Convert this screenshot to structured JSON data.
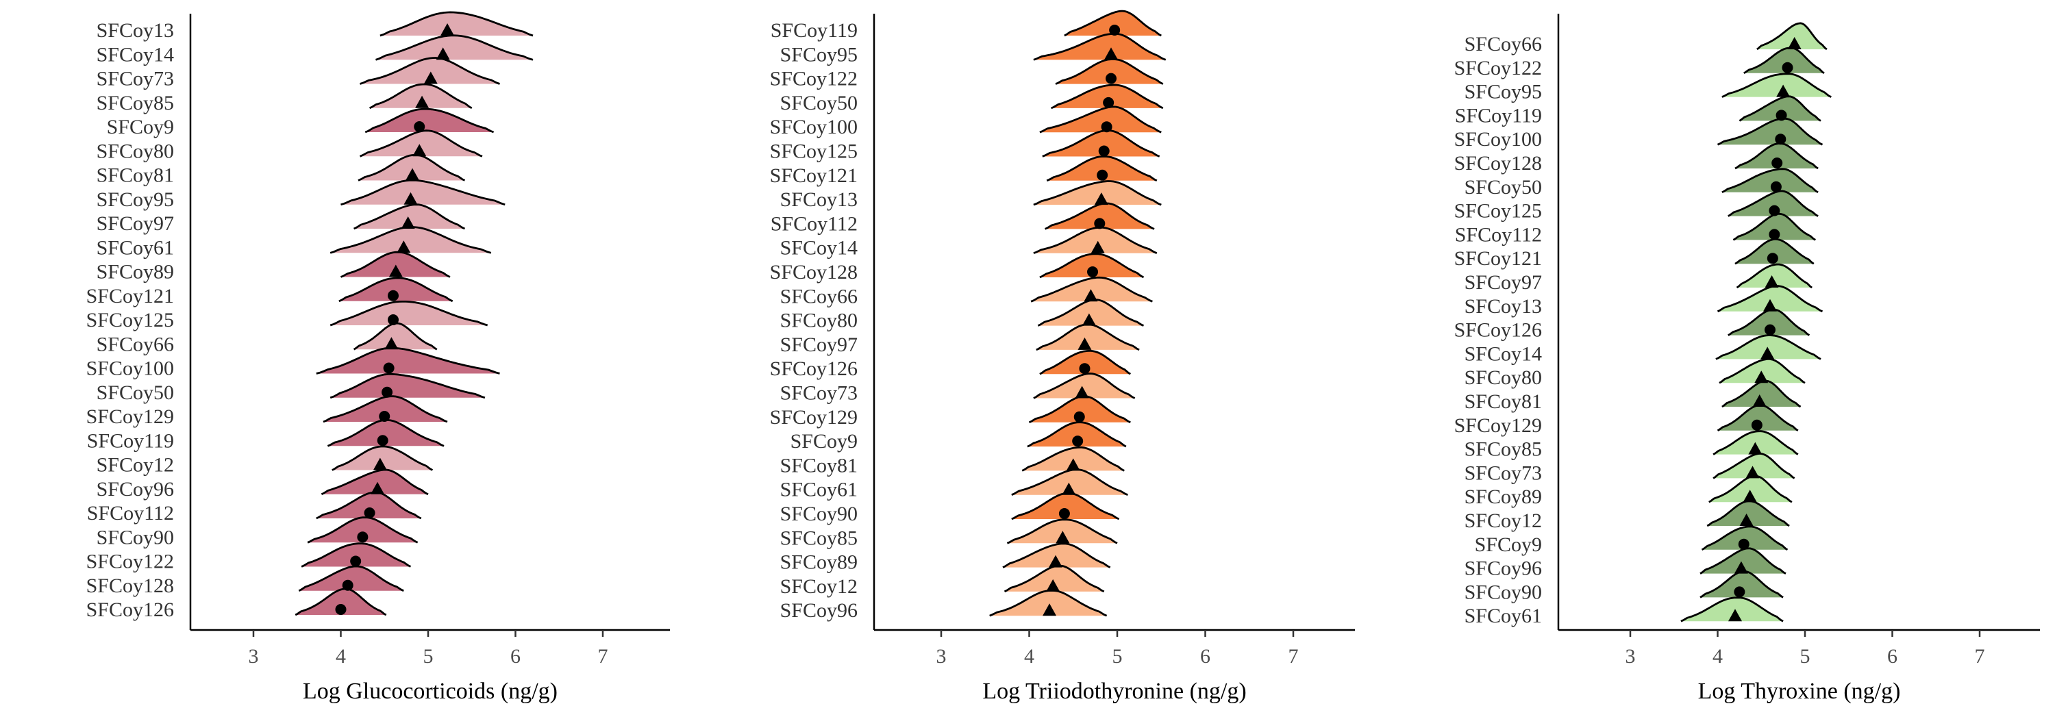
{
  "chart_data": [
    {
      "type": "ridgeline",
      "xlabel": "Log Glucocorticoids (ng/g)",
      "xticks": [
        3,
        4,
        5,
        6,
        7
      ],
      "xlim": [
        2.3,
        7.7
      ],
      "colors": {
        "dark": "#c46b80",
        "light": "#e0aab1"
      },
      "categories": [
        {
          "name": "SFCoy13",
          "marker": "triangle",
          "center": 5.22,
          "shade": "light",
          "min": 4.45,
          "max": 6.2
        },
        {
          "name": "SFCoy14",
          "marker": "triangle",
          "center": 5.17,
          "shade": "light",
          "min": 4.4,
          "max": 6.2
        },
        {
          "name": "SFCoy73",
          "marker": "triangle",
          "center": 5.03,
          "shade": "light",
          "min": 4.22,
          "max": 5.82
        },
        {
          "name": "SFCoy85",
          "marker": "triangle",
          "center": 4.93,
          "shade": "light",
          "min": 4.33,
          "max": 5.5
        },
        {
          "name": "SFCoy9",
          "marker": "circle",
          "center": 4.9,
          "shade": "dark",
          "min": 4.28,
          "max": 5.75
        },
        {
          "name": "SFCoy80",
          "marker": "triangle",
          "center": 4.9,
          "shade": "light",
          "min": 4.22,
          "max": 5.62
        },
        {
          "name": "SFCoy81",
          "marker": "triangle",
          "center": 4.82,
          "shade": "light",
          "min": 4.2,
          "max": 5.42
        },
        {
          "name": "SFCoy95",
          "marker": "triangle",
          "center": 4.8,
          "shade": "light",
          "min": 4.0,
          "max": 5.88
        },
        {
          "name": "SFCoy97",
          "marker": "triangle",
          "center": 4.77,
          "shade": "light",
          "min": 4.15,
          "max": 5.42
        },
        {
          "name": "SFCoy61",
          "marker": "triangle",
          "center": 4.72,
          "shade": "light",
          "min": 3.88,
          "max": 5.72
        },
        {
          "name": "SFCoy89",
          "marker": "triangle",
          "center": 4.63,
          "shade": "dark",
          "min": 4.0,
          "max": 5.25
        },
        {
          "name": "SFCoy121",
          "marker": "circle",
          "center": 4.6,
          "shade": "dark",
          "min": 3.98,
          "max": 5.28
        },
        {
          "name": "SFCoy125",
          "marker": "circle",
          "center": 4.6,
          "shade": "light",
          "min": 3.88,
          "max": 5.68
        },
        {
          "name": "SFCoy66",
          "marker": "triangle",
          "center": 4.58,
          "shade": "light",
          "min": 4.15,
          "max": 5.1
        },
        {
          "name": "SFCoy100",
          "marker": "circle",
          "center": 4.55,
          "shade": "dark",
          "min": 3.72,
          "max": 5.82
        },
        {
          "name": "SFCoy50",
          "marker": "circle",
          "center": 4.53,
          "shade": "dark",
          "min": 3.88,
          "max": 5.65
        },
        {
          "name": "SFCoy129",
          "marker": "circle",
          "center": 4.5,
          "shade": "dark",
          "min": 3.8,
          "max": 5.22
        },
        {
          "name": "SFCoy119",
          "marker": "circle",
          "center": 4.48,
          "shade": "dark",
          "min": 3.85,
          "max": 5.18
        },
        {
          "name": "SFCoy12",
          "marker": "triangle",
          "center": 4.45,
          "shade": "light",
          "min": 3.9,
          "max": 5.05
        },
        {
          "name": "SFCoy96",
          "marker": "triangle",
          "center": 4.42,
          "shade": "dark",
          "min": 3.78,
          "max": 5.0
        },
        {
          "name": "SFCoy112",
          "marker": "circle",
          "center": 4.33,
          "shade": "dark",
          "min": 3.72,
          "max": 4.92
        },
        {
          "name": "SFCoy90",
          "marker": "circle",
          "center": 4.25,
          "shade": "dark",
          "min": 3.62,
          "max": 4.88
        },
        {
          "name": "SFCoy122",
          "marker": "circle",
          "center": 4.17,
          "shade": "dark",
          "min": 3.55,
          "max": 4.8
        },
        {
          "name": "SFCoy128",
          "marker": "circle",
          "center": 4.08,
          "shade": "dark",
          "min": 3.52,
          "max": 4.72
        },
        {
          "name": "SFCoy126",
          "marker": "circle",
          "center": 4.0,
          "shade": "dark",
          "min": 3.48,
          "max": 4.52
        }
      ]
    },
    {
      "type": "ridgeline",
      "xlabel": "Log Triiodothyronine (ng/g)",
      "xticks": [
        3,
        4,
        5,
        6,
        7
      ],
      "xlim": [
        2.3,
        7.7
      ],
      "colors": {
        "dark": "#f47f3e",
        "light": "#f9b488"
      },
      "categories": [
        {
          "name": "SFCoy119",
          "marker": "circle",
          "center": 4.97,
          "shade": "dark",
          "min": 4.4,
          "max": 5.5
        },
        {
          "name": "SFCoy95",
          "marker": "triangle",
          "center": 4.93,
          "shade": "dark",
          "min": 4.05,
          "max": 5.55
        },
        {
          "name": "SFCoy122",
          "marker": "circle",
          "center": 4.93,
          "shade": "dark",
          "min": 4.3,
          "max": 5.52
        },
        {
          "name": "SFCoy50",
          "marker": "circle",
          "center": 4.9,
          "shade": "dark",
          "min": 4.25,
          "max": 5.52
        },
        {
          "name": "SFCoy100",
          "marker": "circle",
          "center": 4.88,
          "shade": "dark",
          "min": 4.12,
          "max": 5.5
        },
        {
          "name": "SFCoy125",
          "marker": "circle",
          "center": 4.85,
          "shade": "dark",
          "min": 4.15,
          "max": 5.48
        },
        {
          "name": "SFCoy121",
          "marker": "circle",
          "center": 4.83,
          "shade": "dark",
          "min": 4.2,
          "max": 5.45
        },
        {
          "name": "SFCoy13",
          "marker": "triangle",
          "center": 4.82,
          "shade": "light",
          "min": 4.05,
          "max": 5.5
        },
        {
          "name": "SFCoy112",
          "marker": "circle",
          "center": 4.8,
          "shade": "dark",
          "min": 4.18,
          "max": 5.42
        },
        {
          "name": "SFCoy14",
          "marker": "triangle",
          "center": 4.78,
          "shade": "light",
          "min": 4.05,
          "max": 5.45
        },
        {
          "name": "SFCoy128",
          "marker": "circle",
          "center": 4.72,
          "shade": "dark",
          "min": 4.12,
          "max": 5.3
        },
        {
          "name": "SFCoy66",
          "marker": "triangle",
          "center": 4.7,
          "shade": "light",
          "min": 4.02,
          "max": 5.4
        },
        {
          "name": "SFCoy80",
          "marker": "triangle",
          "center": 4.68,
          "shade": "light",
          "min": 4.1,
          "max": 5.3
        },
        {
          "name": "SFCoy97",
          "marker": "triangle",
          "center": 4.63,
          "shade": "light",
          "min": 4.08,
          "max": 5.25
        },
        {
          "name": "SFCoy126",
          "marker": "circle",
          "center": 4.63,
          "shade": "dark",
          "min": 4.12,
          "max": 5.15
        },
        {
          "name": "SFCoy73",
          "marker": "triangle",
          "center": 4.6,
          "shade": "light",
          "min": 4.05,
          "max": 5.2
        },
        {
          "name": "SFCoy129",
          "marker": "circle",
          "center": 4.57,
          "shade": "dark",
          "min": 4.0,
          "max": 5.15
        },
        {
          "name": "SFCoy9",
          "marker": "circle",
          "center": 4.55,
          "shade": "dark",
          "min": 3.98,
          "max": 5.1
        },
        {
          "name": "SFCoy81",
          "marker": "triangle",
          "center": 4.5,
          "shade": "light",
          "min": 3.92,
          "max": 5.08
        },
        {
          "name": "SFCoy61",
          "marker": "triangle",
          "center": 4.45,
          "shade": "light",
          "min": 3.8,
          "max": 5.12
        },
        {
          "name": "SFCoy90",
          "marker": "circle",
          "center": 4.4,
          "shade": "dark",
          "min": 3.8,
          "max": 5.02
        },
        {
          "name": "SFCoy85",
          "marker": "triangle",
          "center": 4.38,
          "shade": "light",
          "min": 3.75,
          "max": 5.0
        },
        {
          "name": "SFCoy89",
          "marker": "triangle",
          "center": 4.3,
          "shade": "light",
          "min": 3.7,
          "max": 4.92
        },
        {
          "name": "SFCoy12",
          "marker": "triangle",
          "center": 4.27,
          "shade": "light",
          "min": 3.72,
          "max": 4.85
        },
        {
          "name": "SFCoy96",
          "marker": "triangle",
          "center": 4.23,
          "shade": "light",
          "min": 3.55,
          "max": 4.88
        }
      ]
    },
    {
      "type": "ridgeline",
      "xlabel": "Log Thyroxine (ng/g)",
      "xticks": [
        3,
        4,
        5,
        6,
        7
      ],
      "xlim": [
        2.3,
        7.7
      ],
      "colors": {
        "dark": "#7fa36e",
        "light": "#b6e3a2"
      },
      "categories": [
        {
          "name": "SFCoy66",
          "marker": "triangle",
          "center": 4.88,
          "shade": "light",
          "min": 4.45,
          "max": 5.25
        },
        {
          "name": "SFCoy122",
          "marker": "circle",
          "center": 4.8,
          "shade": "dark",
          "min": 4.3,
          "max": 5.22
        },
        {
          "name": "SFCoy95",
          "marker": "triangle",
          "center": 4.75,
          "shade": "light",
          "min": 4.05,
          "max": 5.3
        },
        {
          "name": "SFCoy119",
          "marker": "circle",
          "center": 4.73,
          "shade": "dark",
          "min": 4.25,
          "max": 5.18
        },
        {
          "name": "SFCoy100",
          "marker": "circle",
          "center": 4.72,
          "shade": "dark",
          "min": 4.0,
          "max": 5.2
        },
        {
          "name": "SFCoy128",
          "marker": "circle",
          "center": 4.68,
          "shade": "dark",
          "min": 4.2,
          "max": 5.15
        },
        {
          "name": "SFCoy50",
          "marker": "circle",
          "center": 4.67,
          "shade": "dark",
          "min": 4.05,
          "max": 5.15
        },
        {
          "name": "SFCoy125",
          "marker": "circle",
          "center": 4.65,
          "shade": "dark",
          "min": 4.12,
          "max": 5.15
        },
        {
          "name": "SFCoy112",
          "marker": "circle",
          "center": 4.65,
          "shade": "dark",
          "min": 4.18,
          "max": 5.12
        },
        {
          "name": "SFCoy121",
          "marker": "circle",
          "center": 4.63,
          "shade": "dark",
          "min": 4.2,
          "max": 5.1
        },
        {
          "name": "SFCoy97",
          "marker": "triangle",
          "center": 4.62,
          "shade": "light",
          "min": 4.22,
          "max": 5.08
        },
        {
          "name": "SFCoy13",
          "marker": "triangle",
          "center": 4.6,
          "shade": "light",
          "min": 4.0,
          "max": 5.2
        },
        {
          "name": "SFCoy126",
          "marker": "circle",
          "center": 4.6,
          "shade": "dark",
          "min": 4.12,
          "max": 5.05
        },
        {
          "name": "SFCoy14",
          "marker": "triangle",
          "center": 4.57,
          "shade": "light",
          "min": 3.98,
          "max": 5.18
        },
        {
          "name": "SFCoy80",
          "marker": "triangle",
          "center": 4.5,
          "shade": "light",
          "min": 4.02,
          "max": 5.0
        },
        {
          "name": "SFCoy81",
          "marker": "triangle",
          "center": 4.48,
          "shade": "dark",
          "min": 4.05,
          "max": 4.95
        },
        {
          "name": "SFCoy129",
          "marker": "circle",
          "center": 4.45,
          "shade": "dark",
          "min": 4.0,
          "max": 4.92
        },
        {
          "name": "SFCoy85",
          "marker": "triangle",
          "center": 4.43,
          "shade": "light",
          "min": 3.95,
          "max": 4.92
        },
        {
          "name": "SFCoy73",
          "marker": "triangle",
          "center": 4.4,
          "shade": "light",
          "min": 3.95,
          "max": 4.88
        },
        {
          "name": "SFCoy89",
          "marker": "triangle",
          "center": 4.37,
          "shade": "light",
          "min": 3.9,
          "max": 4.85
        },
        {
          "name": "SFCoy12",
          "marker": "triangle",
          "center": 4.33,
          "shade": "dark",
          "min": 3.88,
          "max": 4.82
        },
        {
          "name": "SFCoy9",
          "marker": "circle",
          "center": 4.3,
          "shade": "dark",
          "min": 3.82,
          "max": 4.8
        },
        {
          "name": "SFCoy96",
          "marker": "triangle",
          "center": 4.27,
          "shade": "dark",
          "min": 3.8,
          "max": 4.78
        },
        {
          "name": "SFCoy90",
          "marker": "circle",
          "center": 4.25,
          "shade": "dark",
          "min": 3.8,
          "max": 4.75
        },
        {
          "name": "SFCoy61",
          "marker": "triangle",
          "center": 4.2,
          "shade": "light",
          "min": 3.58,
          "max": 4.75
        }
      ]
    }
  ]
}
